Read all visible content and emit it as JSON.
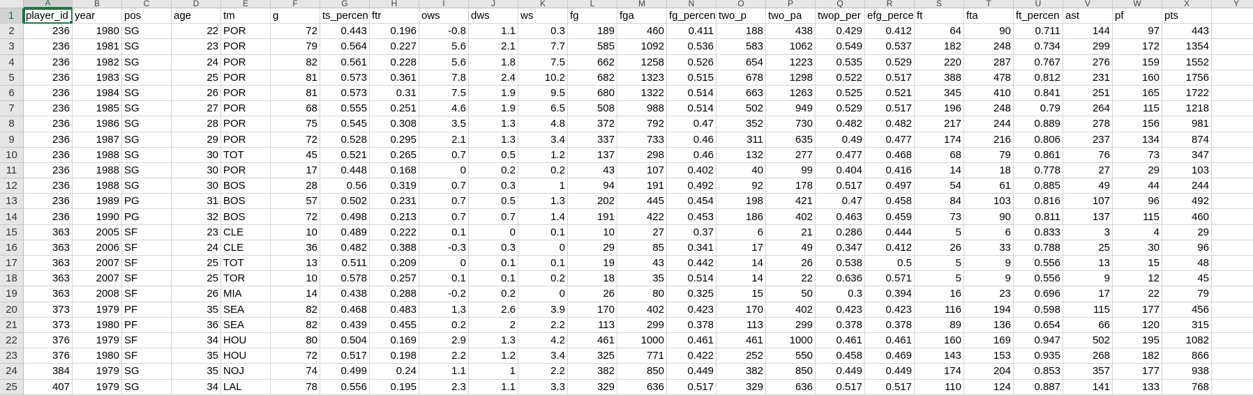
{
  "columns": [
    "A",
    "B",
    "C",
    "D",
    "E",
    "F",
    "G",
    "H",
    "I",
    "J",
    "K",
    "L",
    "M",
    "N",
    "O",
    "P",
    "Q",
    "R",
    "S",
    "T",
    "U",
    "V",
    "W",
    "X",
    "Y"
  ],
  "numeric_columns": [
    0,
    1,
    3,
    5,
    6,
    7,
    8,
    9,
    10,
    11,
    12,
    13,
    14,
    15,
    16,
    17,
    18,
    19,
    20,
    21,
    22,
    23
  ],
  "active_cell": {
    "row": 1,
    "col": 0
  },
  "rows": [
    [
      "player_id",
      "year",
      "pos",
      "age",
      "tm",
      "g",
      "ts_percen",
      "ftr",
      "ows",
      "dws",
      "ws",
      "fg",
      "fga",
      "fg_percen",
      "two_p",
      "two_pa",
      "twop_per",
      "efg_perce",
      "ft",
      "fta",
      "ft_percen",
      "ast",
      "pf",
      "pts",
      ""
    ],
    [
      "236",
      "1980",
      "SG",
      "22",
      "POR",
      "72",
      "0.443",
      "0.196",
      "-0.8",
      "1.1",
      "0.3",
      "189",
      "460",
      "0.411",
      "188",
      "438",
      "0.429",
      "0.412",
      "64",
      "90",
      "0.711",
      "144",
      "97",
      "443",
      ""
    ],
    [
      "236",
      "1981",
      "SG",
      "23",
      "POR",
      "79",
      "0.564",
      "0.227",
      "5.6",
      "2.1",
      "7.7",
      "585",
      "1092",
      "0.536",
      "583",
      "1062",
      "0.549",
      "0.537",
      "182",
      "248",
      "0.734",
      "299",
      "172",
      "1354",
      ""
    ],
    [
      "236",
      "1982",
      "SG",
      "24",
      "POR",
      "82",
      "0.561",
      "0.228",
      "5.6",
      "1.8",
      "7.5",
      "662",
      "1258",
      "0.526",
      "654",
      "1223",
      "0.535",
      "0.529",
      "220",
      "287",
      "0.767",
      "276",
      "159",
      "1552",
      ""
    ],
    [
      "236",
      "1983",
      "SG",
      "25",
      "POR",
      "81",
      "0.573",
      "0.361",
      "7.8",
      "2.4",
      "10.2",
      "682",
      "1323",
      "0.515",
      "678",
      "1298",
      "0.522",
      "0.517",
      "388",
      "478",
      "0.812",
      "231",
      "160",
      "1756",
      ""
    ],
    [
      "236",
      "1984",
      "SG",
      "26",
      "POR",
      "81",
      "0.573",
      "0.31",
      "7.5",
      "1.9",
      "9.5",
      "680",
      "1322",
      "0.514",
      "663",
      "1263",
      "0.525",
      "0.521",
      "345",
      "410",
      "0.841",
      "251",
      "165",
      "1722",
      ""
    ],
    [
      "236",
      "1985",
      "SG",
      "27",
      "POR",
      "68",
      "0.555",
      "0.251",
      "4.6",
      "1.9",
      "6.5",
      "508",
      "988",
      "0.514",
      "502",
      "949",
      "0.529",
      "0.517",
      "196",
      "248",
      "0.79",
      "264",
      "115",
      "1218",
      ""
    ],
    [
      "236",
      "1986",
      "SG",
      "28",
      "POR",
      "75",
      "0.545",
      "0.308",
      "3.5",
      "1.3",
      "4.8",
      "372",
      "792",
      "0.47",
      "352",
      "730",
      "0.482",
      "0.482",
      "217",
      "244",
      "0.889",
      "278",
      "156",
      "981",
      ""
    ],
    [
      "236",
      "1987",
      "SG",
      "29",
      "POR",
      "72",
      "0.528",
      "0.295",
      "2.1",
      "1.3",
      "3.4",
      "337",
      "733",
      "0.46",
      "311",
      "635",
      "0.49",
      "0.477",
      "174",
      "216",
      "0.806",
      "237",
      "134",
      "874",
      ""
    ],
    [
      "236",
      "1988",
      "SG",
      "30",
      "TOT",
      "45",
      "0.521",
      "0.265",
      "0.7",
      "0.5",
      "1.2",
      "137",
      "298",
      "0.46",
      "132",
      "277",
      "0.477",
      "0.468",
      "68",
      "79",
      "0.861",
      "76",
      "73",
      "347",
      ""
    ],
    [
      "236",
      "1988",
      "SG",
      "30",
      "POR",
      "17",
      "0.448",
      "0.168",
      "0",
      "0.2",
      "0.2",
      "43",
      "107",
      "0.402",
      "40",
      "99",
      "0.404",
      "0.416",
      "14",
      "18",
      "0.778",
      "27",
      "29",
      "103",
      ""
    ],
    [
      "236",
      "1988",
      "SG",
      "30",
      "BOS",
      "28",
      "0.56",
      "0.319",
      "0.7",
      "0.3",
      "1",
      "94",
      "191",
      "0.492",
      "92",
      "178",
      "0.517",
      "0.497",
      "54",
      "61",
      "0.885",
      "49",
      "44",
      "244",
      ""
    ],
    [
      "236",
      "1989",
      "PG",
      "31",
      "BOS",
      "57",
      "0.502",
      "0.231",
      "0.7",
      "0.5",
      "1.3",
      "202",
      "445",
      "0.454",
      "198",
      "421",
      "0.47",
      "0.458",
      "84",
      "103",
      "0.816",
      "107",
      "96",
      "492",
      ""
    ],
    [
      "236",
      "1990",
      "PG",
      "32",
      "BOS",
      "72",
      "0.498",
      "0.213",
      "0.7",
      "0.7",
      "1.4",
      "191",
      "422",
      "0.453",
      "186",
      "402",
      "0.463",
      "0.459",
      "73",
      "90",
      "0.811",
      "137",
      "115",
      "460",
      ""
    ],
    [
      "363",
      "2005",
      "SF",
      "23",
      "CLE",
      "10",
      "0.489",
      "0.222",
      "0.1",
      "0",
      "0.1",
      "10",
      "27",
      "0.37",
      "6",
      "21",
      "0.286",
      "0.444",
      "5",
      "6",
      "0.833",
      "3",
      "4",
      "29",
      ""
    ],
    [
      "363",
      "2006",
      "SF",
      "24",
      "CLE",
      "36",
      "0.482",
      "0.388",
      "-0.3",
      "0.3",
      "0",
      "29",
      "85",
      "0.341",
      "17",
      "49",
      "0.347",
      "0.412",
      "26",
      "33",
      "0.788",
      "25",
      "30",
      "96",
      ""
    ],
    [
      "363",
      "2007",
      "SF",
      "25",
      "TOT",
      "13",
      "0.511",
      "0.209",
      "0",
      "0.1",
      "0.1",
      "19",
      "43",
      "0.442",
      "14",
      "26",
      "0.538",
      "0.5",
      "5",
      "9",
      "0.556",
      "13",
      "15",
      "48",
      ""
    ],
    [
      "363",
      "2007",
      "SF",
      "25",
      "TOR",
      "10",
      "0.578",
      "0.257",
      "0.1",
      "0.1",
      "0.2",
      "18",
      "35",
      "0.514",
      "14",
      "22",
      "0.636",
      "0.571",
      "5",
      "9",
      "0.556",
      "9",
      "12",
      "45",
      ""
    ],
    [
      "363",
      "2008",
      "SF",
      "26",
      "MIA",
      "14",
      "0.438",
      "0.288",
      "-0.2",
      "0.2",
      "0",
      "26",
      "80",
      "0.325",
      "15",
      "50",
      "0.3",
      "0.394",
      "16",
      "23",
      "0.696",
      "17",
      "22",
      "79",
      ""
    ],
    [
      "373",
      "1979",
      "PF",
      "35",
      "SEA",
      "82",
      "0.468",
      "0.483",
      "1.3",
      "2.6",
      "3.9",
      "170",
      "402",
      "0.423",
      "170",
      "402",
      "0.423",
      "0.423",
      "116",
      "194",
      "0.598",
      "115",
      "177",
      "456",
      ""
    ],
    [
      "373",
      "1980",
      "PF",
      "36",
      "SEA",
      "82",
      "0.439",
      "0.455",
      "0.2",
      "2",
      "2.2",
      "113",
      "299",
      "0.378",
      "113",
      "299",
      "0.378",
      "0.378",
      "89",
      "136",
      "0.654",
      "66",
      "120",
      "315",
      ""
    ],
    [
      "376",
      "1979",
      "SF",
      "34",
      "HOU",
      "80",
      "0.504",
      "0.169",
      "2.9",
      "1.3",
      "4.2",
      "461",
      "1000",
      "0.461",
      "461",
      "1000",
      "0.461",
      "0.461",
      "160",
      "169",
      "0.947",
      "502",
      "195",
      "1082",
      ""
    ],
    [
      "376",
      "1980",
      "SF",
      "35",
      "HOU",
      "72",
      "0.517",
      "0.198",
      "2.2",
      "1.2",
      "3.4",
      "325",
      "771",
      "0.422",
      "252",
      "550",
      "0.458",
      "0.469",
      "143",
      "153",
      "0.935",
      "268",
      "182",
      "866",
      ""
    ],
    [
      "384",
      "1979",
      "SG",
      "35",
      "NOJ",
      "74",
      "0.499",
      "0.24",
      "1.1",
      "1",
      "2.2",
      "382",
      "850",
      "0.449",
      "382",
      "850",
      "0.449",
      "0.449",
      "174",
      "204",
      "0.853",
      "357",
      "177",
      "938",
      ""
    ],
    [
      "407",
      "1979",
      "SG",
      "34",
      "LAL",
      "78",
      "0.556",
      "0.195",
      "2.3",
      "1.1",
      "3.3",
      "329",
      "636",
      "0.517",
      "329",
      "636",
      "0.517",
      "0.517",
      "110",
      "124",
      "0.887",
      "141",
      "133",
      "768",
      ""
    ]
  ]
}
